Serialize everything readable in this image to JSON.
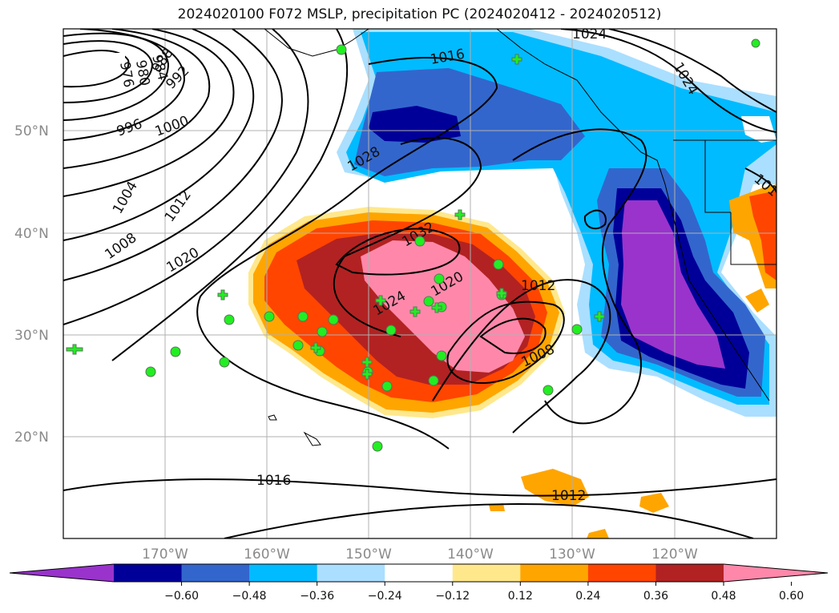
{
  "title": "2024020100 F072 MSLP, precipitation PC (2024020412 - 2024020512)",
  "lon_labels": [
    "170°W",
    "160°W",
    "150°W",
    "140°W",
    "130°W",
    "120°W"
  ],
  "lat_labels": [
    "50°N",
    "40°N",
    "30°N",
    "20°N"
  ],
  "contour_labels": [
    "976",
    "980",
    "984",
    "988",
    "992",
    "996",
    "1000",
    "1004",
    "1008",
    "1012",
    "1016",
    "1020",
    "1024",
    "1028",
    "1032",
    "1020",
    "1024",
    "1012",
    "1008",
    "1016",
    "1012",
    "1024",
    "1016",
    "1024",
    "101"
  ],
  "colorbar": {
    "ticks": [
      "−0.60",
      "−0.48",
      "−0.36",
      "−0.24",
      "−0.12",
      "0.12",
      "0.24",
      "0.36",
      "0.48",
      "0.60"
    ],
    "colors": [
      "#9933cc",
      "#000099",
      "#3366cc",
      "#00bbff",
      "#aadfff",
      "#ffffff",
      "#ffe88c",
      "#ffa500",
      "#ff4500",
      "#b22222",
      "#ff88aa"
    ]
  },
  "colors": {
    "land_lines": "#000000",
    "grid": "#b0b0b0",
    "station_green": "#22ee22"
  }
}
